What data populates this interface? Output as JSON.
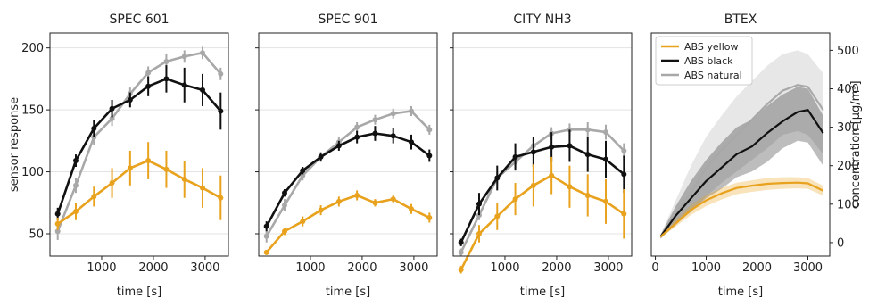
{
  "colors": {
    "yellow": "#e8a21e",
    "black": "#111111",
    "natural": "#a8a8a8"
  },
  "chart_data": [
    {
      "type": "line",
      "title": "SPEC 601",
      "xlabel": "time [s]",
      "ylabel": "sensor response",
      "xlim": [
        0,
        3450
      ],
      "ylim": [
        32,
        212
      ],
      "xticks": [
        1000,
        2000,
        3000
      ],
      "yticks": [
        50,
        100,
        150,
        200
      ],
      "grid": true,
      "error_bars": true,
      "series": [
        {
          "color_key": "natural",
          "x": [
            150,
            500,
            850,
            1200,
            1550,
            1900,
            2250,
            2600,
            2950,
            3300
          ],
          "y": [
            52,
            89,
            128,
            143,
            163,
            180,
            189,
            193,
            196,
            179
          ],
          "err": [
            7,
            6,
            6,
            6,
            5,
            5,
            6,
            5,
            5,
            5
          ]
        },
        {
          "color_key": "black",
          "x": [
            150,
            500,
            850,
            1200,
            1550,
            1900,
            2250,
            2600,
            2950,
            3300
          ],
          "y": [
            66,
            109,
            135,
            151,
            158,
            169,
            175,
            170,
            166,
            149
          ],
          "err": [
            5,
            5,
            7,
            7,
            6,
            8,
            11,
            14,
            13,
            15
          ]
        },
        {
          "color_key": "yellow",
          "x": [
            150,
            500,
            850,
            1200,
            1550,
            1900,
            2250,
            2600,
            2950,
            3300
          ],
          "y": [
            58,
            68,
            80,
            91,
            103,
            109,
            102,
            94,
            87,
            79
          ],
          "err": [
            5,
            7,
            8,
            12,
            14,
            15,
            15,
            15,
            16,
            18
          ]
        }
      ]
    },
    {
      "type": "line",
      "title": "SPEC 901",
      "xlabel": "time [s]",
      "ylabel": "",
      "xlim": [
        0,
        3450
      ],
      "ylim": [
        32,
        212
      ],
      "xticks": [
        1000,
        2000,
        3000
      ],
      "yticks": [
        50,
        100,
        150,
        200
      ],
      "grid": true,
      "error_bars": true,
      "series": [
        {
          "color_key": "natural",
          "x": [
            150,
            500,
            850,
            1200,
            1550,
            1900,
            2250,
            2600,
            2950,
            3300
          ],
          "y": [
            48,
            73,
            97,
            112,
            124,
            136,
            142,
            147,
            149,
            134
          ],
          "err": [
            5,
            5,
            4,
            4,
            4,
            4,
            4,
            4,
            4,
            4
          ]
        },
        {
          "color_key": "black",
          "x": [
            150,
            500,
            850,
            1200,
            1550,
            1900,
            2250,
            2600,
            2950,
            3300
          ],
          "y": [
            56,
            83,
            101,
            112,
            121,
            128,
            131,
            129,
            124,
            113
          ],
          "err": [
            4,
            3,
            3,
            3,
            4,
            5,
            6,
            6,
            6,
            5
          ]
        },
        {
          "color_key": "yellow",
          "x": [
            150,
            500,
            850,
            1200,
            1550,
            1900,
            2250,
            2600,
            2950,
            3300
          ],
          "y": [
            35,
            52,
            60,
            69,
            76,
            81,
            75,
            78,
            70,
            63
          ],
          "err": [
            2,
            3,
            4,
            4,
            4,
            4,
            3,
            3,
            4,
            4
          ]
        }
      ]
    },
    {
      "type": "line",
      "title": "CITY NH3",
      "xlabel": "time [s]",
      "ylabel": "",
      "xlim": [
        0,
        3450
      ],
      "ylim": [
        32,
        212
      ],
      "xticks": [
        1000,
        2000,
        3000
      ],
      "yticks": [
        50,
        100,
        150,
        200
      ],
      "grid": true,
      "error_bars": true,
      "series": [
        {
          "color_key": "natural",
          "x": [
            150,
            500,
            850,
            1200,
            1550,
            1900,
            2250,
            2600,
            2950,
            3300
          ],
          "y": [
            35,
            65,
            95,
            108,
            121,
            131,
            134,
            134,
            132,
            117
          ],
          "err": [
            3,
            4,
            5,
            5,
            5,
            5,
            5,
            6,
            6,
            6
          ]
        },
        {
          "color_key": "black",
          "x": [
            150,
            500,
            850,
            1200,
            1550,
            1900,
            2250,
            2600,
            2950,
            3300
          ],
          "y": [
            43,
            74,
            95,
            112,
            116,
            120,
            121,
            114,
            110,
            98
          ],
          "err": [
            3,
            9,
            10,
            11,
            12,
            12,
            13,
            14,
            15,
            15
          ]
        },
        {
          "color_key": "yellow",
          "x": [
            150,
            500,
            850,
            1200,
            1550,
            1900,
            2250,
            2600,
            2950,
            3300
          ],
          "y": [
            21,
            50,
            64,
            78,
            89,
            97,
            88,
            81,
            76,
            66
          ],
          "err": [
            3,
            7,
            11,
            13,
            17,
            15,
            17,
            17,
            18,
            20
          ]
        }
      ]
    },
    {
      "type": "area",
      "title": "BTEX",
      "xlabel": "time [s]",
      "ylabel": "concentration [μg/m³]",
      "y_axis_side": "right",
      "xlim": [
        -80,
        3430
      ],
      "ylim": [
        -35,
        545
      ],
      "xticks": [
        0,
        1000,
        2000,
        3000
      ],
      "yticks": [
        0,
        100,
        200,
        300,
        400,
        500
      ],
      "grid": false,
      "legend": {
        "position": "top-left",
        "entries": [
          "ABS yellow",
          "ABS black",
          "ABS natural"
        ]
      },
      "series": [
        {
          "name": "ABS natural",
          "color_key": "natural",
          "x": [
            100,
            400,
            700,
            1000,
            1300,
            1600,
            1900,
            2200,
            2500,
            2800,
            3000,
            3300
          ],
          "y": [
            15,
            75,
            130,
            195,
            240,
            280,
            320,
            360,
            395,
            410,
            405,
            345
          ],
          "lower": [
            10,
            45,
            80,
            120,
            155,
            185,
            215,
            245,
            280,
            290,
            280,
            230
          ],
          "upper": [
            20,
            110,
            200,
            275,
            330,
            380,
            420,
            460,
            490,
            500,
            490,
            440
          ]
        },
        {
          "name": "ABS black",
          "color_key": "black",
          "x": [
            100,
            400,
            700,
            1000,
            1300,
            1600,
            1900,
            2200,
            2500,
            2800,
            3000,
            3300
          ],
          "y": [
            15,
            70,
            115,
            160,
            195,
            230,
            250,
            285,
            315,
            340,
            345,
            285
          ],
          "lower": [
            10,
            50,
            80,
            115,
            140,
            170,
            185,
            210,
            245,
            265,
            260,
            200
          ],
          "upper": [
            20,
            95,
            160,
            215,
            260,
            300,
            320,
            355,
            385,
            405,
            400,
            330
          ]
        },
        {
          "name": "ABS yellow",
          "color_key": "yellow",
          "x": [
            100,
            400,
            700,
            1000,
            1300,
            1600,
            1900,
            2200,
            2500,
            2800,
            3000,
            3300
          ],
          "y": [
            15,
            50,
            85,
            110,
            128,
            142,
            148,
            153,
            155,
            156,
            154,
            135
          ],
          "lower": [
            12,
            42,
            72,
            95,
            112,
            126,
            132,
            137,
            140,
            141,
            140,
            122
          ],
          "upper": [
            18,
            60,
            98,
            124,
            142,
            156,
            162,
            168,
            170,
            170,
            168,
            148
          ]
        }
      ]
    }
  ]
}
